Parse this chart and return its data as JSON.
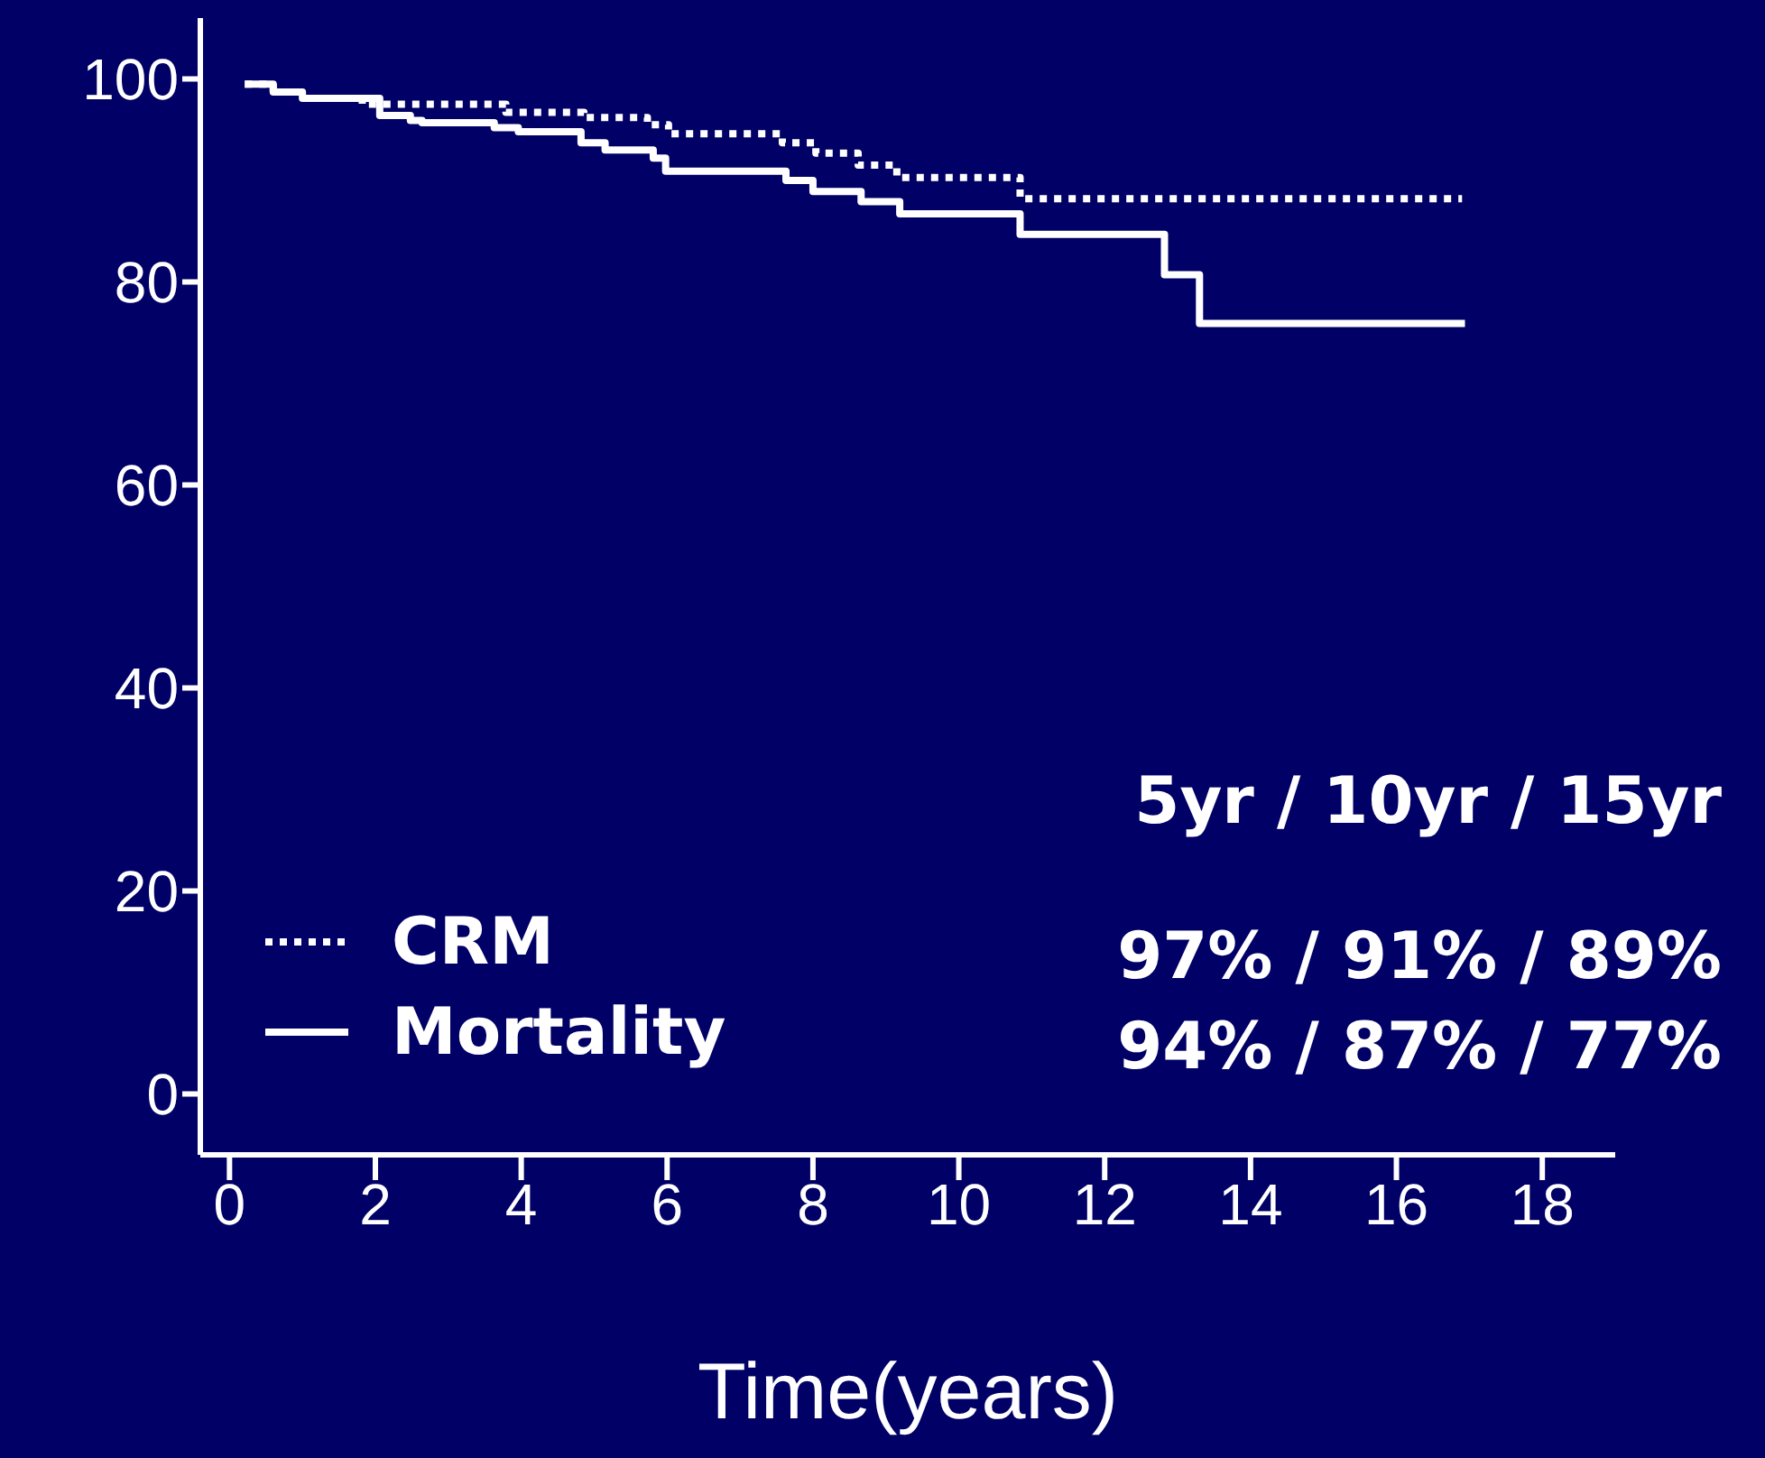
{
  "chart_data": {
    "type": "step",
    "xlabel": "Time(years)",
    "xlim": [
      -0.4,
      19
    ],
    "xticks": [
      0,
      2,
      4,
      6,
      8,
      10,
      12,
      14,
      16,
      18
    ],
    "ylim": [
      -6,
      106
    ],
    "yticks": [
      0,
      20,
      40,
      60,
      80,
      100
    ],
    "grid": false,
    "legend": "bottom left",
    "marker": "none",
    "series": [
      {
        "name": "CRM",
        "color": "#ffffff",
        "line_style": "dotted",
        "x": [
          0.21,
          0.6,
          1.0,
          1.82,
          3.79,
          4.86,
          5.73,
          6.02,
          7.58,
          8.04,
          8.62,
          9.15,
          10.84,
          16.9
        ],
        "values": [
          99.5,
          98.7,
          98.1,
          97.5,
          96.7,
          96.2,
          95.5,
          94.6,
          93.7,
          92.7,
          91.5,
          90.3,
          88.2,
          88.2
        ]
      },
      {
        "name": "Mortality",
        "color": "#ffffff",
        "line_style": "solid",
        "x": [
          0.21,
          0.6,
          1.0,
          2.06,
          2.48,
          2.64,
          3.63,
          3.96,
          4.82,
          5.15,
          5.81,
          5.98,
          7.63,
          8.0,
          8.66,
          9.19,
          10.84,
          12.82,
          13.3,
          16.94
        ],
        "values": [
          99.5,
          98.7,
          98.1,
          96.4,
          95.9,
          95.7,
          95.2,
          94.8,
          93.7,
          93.0,
          92.2,
          90.9,
          90.0,
          88.9,
          87.9,
          86.7,
          84.7,
          80.7,
          75.9,
          75.9
        ]
      }
    ],
    "annotations": [
      "5yr / 10yr / 15yr",
      "97% / 91% / 89%",
      "94% / 87% / 77%"
    ]
  }
}
